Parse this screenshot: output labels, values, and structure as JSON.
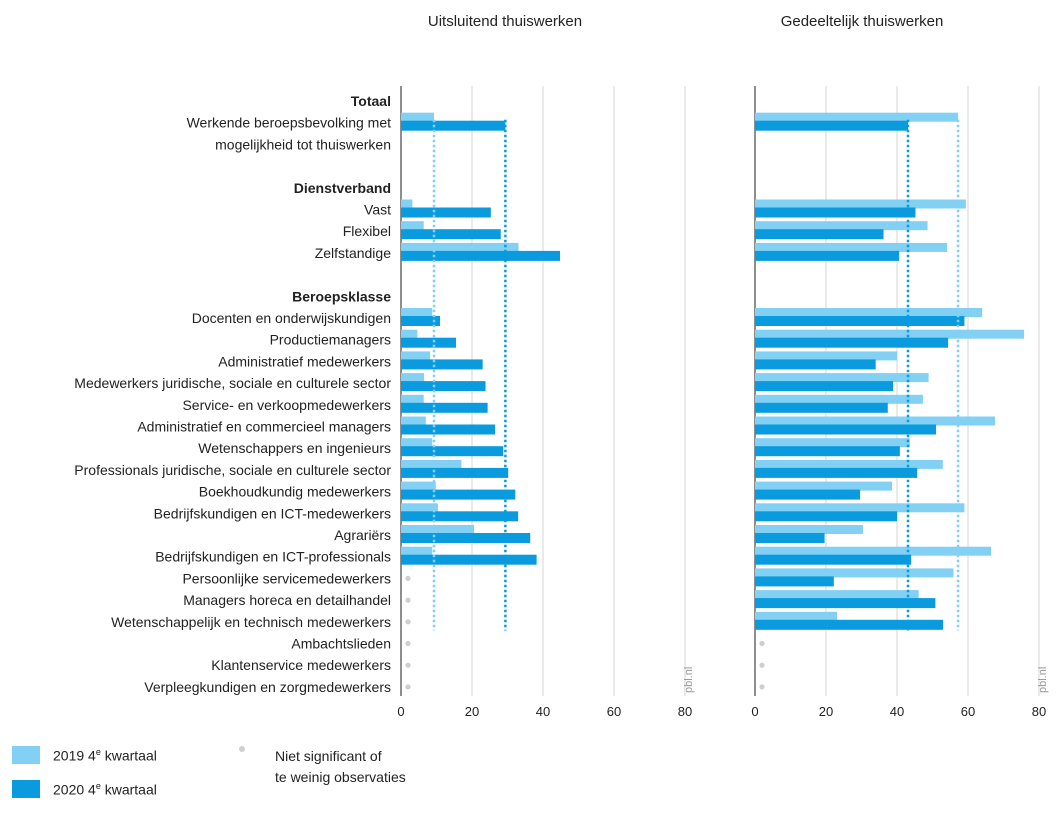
{
  "chart_data": {
    "type": "bar",
    "orientation": "horizontal",
    "unit": "%",
    "xlim": [
      0,
      80
    ],
    "x_ticks": [
      0,
      20,
      40,
      60,
      80
    ],
    "source_tag": "pbl.nl",
    "rows": [
      {
        "label": "Totaal",
        "kind": "header"
      },
      {
        "label": "Werkende beroepsbevolking met",
        "kind": "row",
        "v2019": [
          9.3,
          57.2
        ],
        "v2020": [
          29.4,
          43.1
        ]
      },
      {
        "label": "mogelijkheid tot thuiswerken",
        "kind": "cont"
      },
      {
        "label": "",
        "kind": "spacer"
      },
      {
        "label": "Dienstverband",
        "kind": "header"
      },
      {
        "label": "Vast",
        "kind": "row",
        "v2019": [
          3.2,
          59.4
        ],
        "v2020": [
          25.3,
          45.2
        ]
      },
      {
        "label": "Flexibel",
        "kind": "row",
        "v2019": [
          6.4,
          48.6
        ],
        "v2020": [
          28.1,
          36.2
        ]
      },
      {
        "label": "Zelfstandige",
        "kind": "row",
        "v2019": [
          33.1,
          54.1
        ],
        "v2020": [
          44.8,
          40.6
        ]
      },
      {
        "label": "",
        "kind": "spacer"
      },
      {
        "label": "Beroepsklasse",
        "kind": "header"
      },
      {
        "label": "Docenten en onderwijskundigen",
        "kind": "row",
        "v2019": [
          8.8,
          64.0
        ],
        "v2020": [
          11.0,
          59.0
        ]
      },
      {
        "label": "Productiemanagers",
        "kind": "row",
        "v2019": [
          4.6,
          75.8
        ],
        "v2020": [
          15.5,
          54.4
        ]
      },
      {
        "label": "Administratief medewerkers",
        "kind": "row",
        "v2019": [
          8.2,
          40.0
        ],
        "v2020": [
          23.0,
          34.0
        ]
      },
      {
        "label": "Medewerkers juridische, sociale en culturele sector",
        "kind": "row",
        "v2019": [
          6.5,
          48.9
        ],
        "v2020": [
          23.8,
          38.9
        ]
      },
      {
        "label": "Service- en verkoopmedewerkers",
        "kind": "row",
        "v2019": [
          6.4,
          47.3
        ],
        "v2020": [
          24.4,
          37.4
        ]
      },
      {
        "label": "Administratief en commercieel managers",
        "kind": "row",
        "v2019": [
          7.0,
          67.6
        ],
        "v2020": [
          26.5,
          51.0
        ]
      },
      {
        "label": "Wetenschappers en ingenieurs",
        "kind": "row",
        "v2019": [
          8.8,
          43.6
        ],
        "v2020": [
          28.8,
          40.8
        ]
      },
      {
        "label": "Professionals juridische, sociale en culturele sector",
        "kind": "row",
        "v2019": [
          17.0,
          52.9
        ],
        "v2020": [
          30.2,
          45.7
        ]
      },
      {
        "label": "Boekhoudkundig medewerkers",
        "kind": "row",
        "v2019": [
          9.8,
          38.6
        ],
        "v2020": [
          32.2,
          29.6
        ]
      },
      {
        "label": "Bedrijfskundigen en ICT-medewerkers",
        "kind": "row",
        "v2019": [
          10.4,
          59.0
        ],
        "v2020": [
          33.0,
          40.0
        ]
      },
      {
        "label": "Agrariërs",
        "kind": "row",
        "v2019": [
          20.6,
          30.4
        ],
        "v2020": [
          36.4,
          19.6
        ]
      },
      {
        "label": "Bedrijfskundigen en ICT-professionals",
        "kind": "row",
        "v2019": [
          8.8,
          66.5
        ],
        "v2020": [
          38.2,
          44.0
        ]
      },
      {
        "label": "Persoonlijke servicemedewerkers",
        "kind": "row",
        "v2019": [
          null,
          55.9
        ],
        "v2020": [
          null,
          22.2
        ]
      },
      {
        "label": "Managers horeca en detailhandel",
        "kind": "row",
        "v2019": [
          null,
          46.1
        ],
        "v2020": [
          null,
          50.8
        ]
      },
      {
        "label": "Wetenschappelijk en technisch medewerkers",
        "kind": "row",
        "v2019": [
          null,
          23.1
        ],
        "v2020": [
          null,
          53.0
        ]
      },
      {
        "label": "Ambachtslieden",
        "kind": "row",
        "v2019": [
          null,
          null
        ],
        "v2020": [
          null,
          null
        ]
      },
      {
        "label": "Klantenservice medewerkers",
        "kind": "row",
        "v2019": [
          null,
          null
        ],
        "v2020": [
          null,
          null
        ]
      },
      {
        "label": "Verpleegkundigen en zorgmedewerkers",
        "kind": "row",
        "v2019": [
          null,
          null
        ],
        "v2020": [
          null,
          null
        ]
      }
    ],
    "panels": [
      {
        "title": "Uitsluitend thuiswerken",
        "ref2019": 9.3,
        "ref2020": 29.4
      },
      {
        "title": "Gedeeltelijk thuiswerken",
        "ref2019": 57.2,
        "ref2020": 43.1
      }
    ],
    "series": [
      {
        "key": "v2019",
        "color": "#82d0f4"
      },
      {
        "key": "v2020",
        "color": "#0a9ade"
      }
    ],
    "legend": {
      "position": "bottom-left",
      "items": [
        {
          "label": "2019 4",
          "sup": "e",
          "label_rest": " kwartaal",
          "color": "#82d0f4"
        },
        {
          "label": "2020 4",
          "sup": "e",
          "label_rest": " kwartaal",
          "color": "#0a9ade"
        }
      ],
      "ns_line1": "Niet significant of",
      "ns_line2": "te weinig observaties",
      "ns_color": "#cfcfcf"
    },
    "grid": true
  }
}
